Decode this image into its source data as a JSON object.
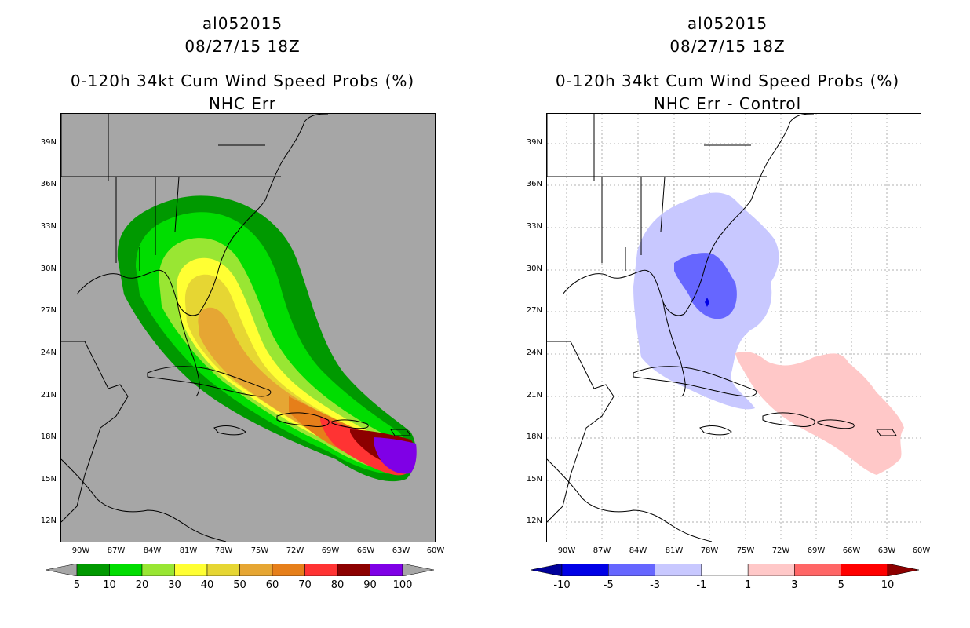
{
  "left": {
    "title": "al052015",
    "datetime": "08/27/15 18Z",
    "product": "0-120h 34kt Cum Wind Speed Probs (%)",
    "subtitle": "NHC Err",
    "lat_labels": [
      "39N",
      "36N",
      "33N",
      "30N",
      "27N",
      "24N",
      "21N",
      "18N",
      "15N",
      "12N"
    ],
    "lon_labels": [
      "90W",
      "87W",
      "84W",
      "81W",
      "78W",
      "75W",
      "72W",
      "69W",
      "66W",
      "63W",
      "60W"
    ],
    "colorbar": {
      "labels": [
        "5",
        "10",
        "20",
        "30",
        "40",
        "50",
        "60",
        "70",
        "80",
        "90",
        "100"
      ],
      "colors": [
        "#009900",
        "#00dd00",
        "#99e633",
        "#ffff33",
        "#e6d633",
        "#e6a633",
        "#e67f1a",
        "#ff3333",
        "#8c0000",
        "#7f00e6"
      ],
      "underflow": "#a6a6a6",
      "overflow": "#a6a6a6"
    },
    "background": "#a6a6a6"
  },
  "right": {
    "title": "al052015",
    "datetime": "08/27/15 18Z",
    "product": "0-120h 34kt Cum Wind Speed Probs (%)",
    "subtitle": "NHC Err - Control",
    "lat_labels": [
      "39N",
      "36N",
      "33N",
      "30N",
      "27N",
      "24N",
      "21N",
      "18N",
      "15N",
      "12N"
    ],
    "lon_labels": [
      "90W",
      "87W",
      "84W",
      "81W",
      "78W",
      "75W",
      "72W",
      "69W",
      "66W",
      "63W",
      "60W"
    ],
    "colorbar": {
      "labels": [
        "-10",
        "-5",
        "-3",
        "-1",
        "1",
        "3",
        "5",
        "10"
      ],
      "colors": [
        "#0000e6",
        "#6666ff",
        "#c8c8ff",
        "#ffffff",
        "#ffc8c8",
        "#ff6666",
        "#ff0000"
      ],
      "underflow": "#000099",
      "overflow": "#8c0000"
    },
    "background": "#ffffff"
  }
}
